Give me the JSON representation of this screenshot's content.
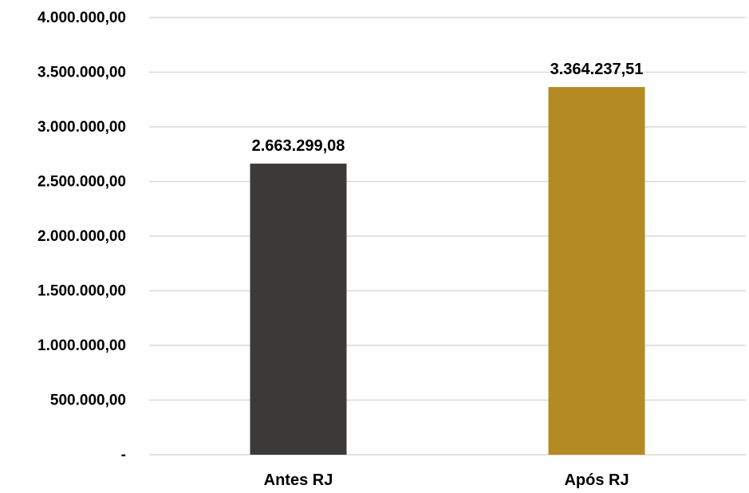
{
  "chart_data": {
    "type": "bar",
    "title": "",
    "xlabel": "",
    "ylabel": "",
    "categories": [
      "Antes RJ",
      "Após RJ"
    ],
    "values": [
      2663299.08,
      3364237.51
    ],
    "value_labels": [
      "2.663.299,08",
      "3.364.237,51"
    ],
    "bar_colors": [
      "#3b3a38",
      "#b38a24"
    ],
    "ylim": [
      0,
      4000000
    ],
    "yticks": [
      0,
      500000,
      1000000,
      1500000,
      2000000,
      2500000,
      3000000,
      3500000,
      4000000
    ],
    "ytick_labels": [
      "-",
      "500.000,00",
      "1.000.000,00",
      "1.500.000,00",
      "2.000.000,00",
      "2.500.000,00",
      "3.000.000,00",
      "3.500.000,00",
      "4.000.000,00"
    ],
    "grid": true,
    "legend": "none",
    "colors": {
      "grid": "#d9d9d9",
      "text": "#000000"
    }
  }
}
